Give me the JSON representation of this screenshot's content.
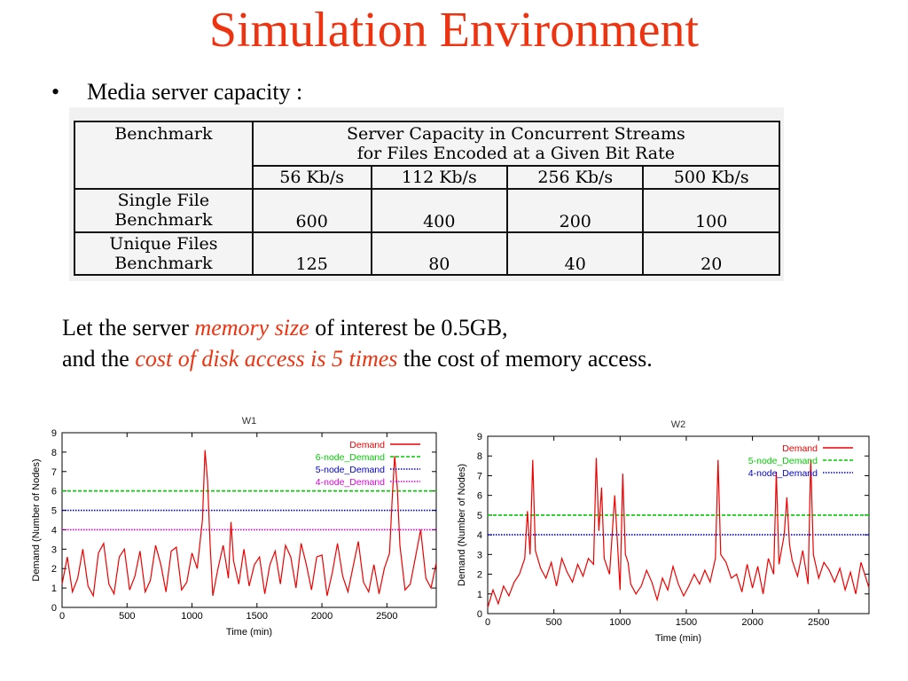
{
  "slide": {
    "title": "Simulation Environment",
    "bullet": "Media server capacity :",
    "para1_a": "Let the server ",
    "para1_b": "memory size",
    "para1_c": " of interest be 0.5GB,",
    "para2_a": "and the ",
    "para2_b": "cost of disk access is 5 times",
    "para2_c": " the cost of memory access.",
    "accent_color": "#ee3311"
  },
  "table": {
    "benchmark_header": "Benchmark",
    "capacity_header_line1": "Server Capacity in Concurrent Streams",
    "capacity_header_line2": "for Files Encoded at a Given Bit Rate",
    "rates": [
      "56 Kb/s",
      "112 Kb/s",
      "256 Kb/s",
      "500 Kb/s"
    ],
    "rows": [
      {
        "label1": "Single File",
        "label2": "Benchmark",
        "values": [
          "600",
          "400",
          "200",
          "100"
        ]
      },
      {
        "label1": "Unique Files",
        "label2": "Benchmark",
        "values": [
          "125",
          "80",
          "40",
          "20"
        ]
      }
    ]
  },
  "chart_data": [
    {
      "type": "line",
      "title": "W1",
      "xlabel": "Time (min)",
      "ylabel": "Demand (Number of Nodes)",
      "xlim": [
        0,
        2880
      ],
      "ylim": [
        0,
        9
      ],
      "xticks": [
        "0",
        "500",
        "1000",
        "1500",
        "2000",
        "2500"
      ],
      "yticks": [
        "0",
        "1",
        "2",
        "3",
        "4",
        "5",
        "6",
        "7",
        "8",
        "9"
      ],
      "legend_position": "top-right",
      "series": [
        {
          "name": "Demand",
          "color": "#ee0000",
          "style": "solid",
          "x": [
            0,
            40,
            80,
            120,
            160,
            200,
            240,
            280,
            320,
            360,
            400,
            440,
            480,
            520,
            560,
            600,
            640,
            680,
            720,
            760,
            800,
            840,
            880,
            920,
            960,
            1000,
            1040,
            1080,
            1100,
            1120,
            1140,
            1160,
            1200,
            1240,
            1280,
            1300,
            1320,
            1360,
            1400,
            1440,
            1480,
            1520,
            1560,
            1600,
            1640,
            1680,
            1720,
            1760,
            1800,
            1840,
            1880,
            1920,
            1960,
            2000,
            2040,
            2080,
            2120,
            2160,
            2200,
            2240,
            2280,
            2320,
            2360,
            2400,
            2440,
            2480,
            2520,
            2540,
            2560,
            2580,
            2600,
            2640,
            2680,
            2720,
            2760,
            2800,
            2840,
            2880
          ],
          "y": [
            1.2,
            2.6,
            0.8,
            1.5,
            3.0,
            1.1,
            0.6,
            2.8,
            3.3,
            1.2,
            0.7,
            2.6,
            3.0,
            0.9,
            1.6,
            2.9,
            0.8,
            1.4,
            3.2,
            2.2,
            0.8,
            2.9,
            3.1,
            0.9,
            1.3,
            2.8,
            2.0,
            4.5,
            8.1,
            6.5,
            3.2,
            0.6,
            2.0,
            3.2,
            1.5,
            4.4,
            2.4,
            1.2,
            3.0,
            1.1,
            2.2,
            2.6,
            0.7,
            2.2,
            2.9,
            1.2,
            3.2,
            2.6,
            1.0,
            3.3,
            2.2,
            0.9,
            2.6,
            2.7,
            0.6,
            1.8,
            3.3,
            1.6,
            0.8,
            2.1,
            3.4,
            1.3,
            0.8,
            2.2,
            0.7,
            2.0,
            2.8,
            5.5,
            7.8,
            6.2,
            3.2,
            0.9,
            1.2,
            2.6,
            4.0,
            1.5,
            1.0,
            2.3
          ]
        },
        {
          "name": "6-node_Demand",
          "color": "#00cc00",
          "style": "dashed",
          "x": [
            0,
            2880
          ],
          "y": [
            6,
            6
          ]
        },
        {
          "name": "5-node_Demand",
          "color": "#0000cc",
          "style": "dotted",
          "x": [
            0,
            2880
          ],
          "y": [
            5,
            5
          ]
        },
        {
          "name": "4-node_Demand",
          "color": "#dd00dd",
          "style": "dotted",
          "x": [
            0,
            2880
          ],
          "y": [
            4,
            4
          ]
        }
      ]
    },
    {
      "type": "line",
      "title": "W2",
      "xlabel": "Time (min)",
      "ylabel": "Demand (Number of Nodes)",
      "xlim": [
        0,
        2880
      ],
      "ylim": [
        0,
        9
      ],
      "xticks": [
        "0",
        "500",
        "1000",
        "1500",
        "2000",
        "2500"
      ],
      "yticks": [
        "0",
        "1",
        "2",
        "3",
        "4",
        "5",
        "6",
        "7",
        "8",
        "9"
      ],
      "legend_position": "top-right",
      "series": [
        {
          "name": "Demand",
          "color": "#ee0000",
          "style": "solid",
          "x": [
            0,
            40,
            80,
            120,
            160,
            200,
            240,
            280,
            300,
            320,
            340,
            360,
            400,
            440,
            480,
            520,
            560,
            600,
            640,
            680,
            720,
            760,
            800,
            820,
            840,
            860,
            880,
            920,
            960,
            1000,
            1020,
            1040,
            1060,
            1080,
            1120,
            1160,
            1200,
            1240,
            1280,
            1320,
            1360,
            1400,
            1440,
            1480,
            1520,
            1560,
            1600,
            1640,
            1680,
            1720,
            1740,
            1760,
            1800,
            1840,
            1880,
            1920,
            1960,
            2000,
            2040,
            2080,
            2120,
            2160,
            2180,
            2200,
            2240,
            2260,
            2280,
            2300,
            2340,
            2380,
            2420,
            2440,
            2460,
            2500,
            2540,
            2580,
            2620,
            2660,
            2700,
            2740,
            2780,
            2820,
            2880
          ],
          "y": [
            0.3,
            1.2,
            0.5,
            1.4,
            0.9,
            1.6,
            2.0,
            2.8,
            5.2,
            3.0,
            7.8,
            3.2,
            2.3,
            1.8,
            2.6,
            1.4,
            2.8,
            2.1,
            1.6,
            2.5,
            1.9,
            2.8,
            2.5,
            7.9,
            4.2,
            6.4,
            2.8,
            2.0,
            6.0,
            1.2,
            7.1,
            3.0,
            2.6,
            1.5,
            1.0,
            1.4,
            2.2,
            1.6,
            0.7,
            1.8,
            1.2,
            2.4,
            1.5,
            0.9,
            1.4,
            2.0,
            1.5,
            2.2,
            1.6,
            2.8,
            7.8,
            3.0,
            2.6,
            1.8,
            2.0,
            1.1,
            2.5,
            1.3,
            2.4,
            1.0,
            2.8,
            2.0,
            7.2,
            2.5,
            4.0,
            5.9,
            3.5,
            2.7,
            1.9,
            3.2,
            1.5,
            7.8,
            3.0,
            1.8,
            2.6,
            2.2,
            1.6,
            2.3,
            1.2,
            2.1,
            1.0,
            2.6,
            1.3
          ]
        },
        {
          "name": "5-node_Demand",
          "color": "#00cc00",
          "style": "dashed",
          "x": [
            0,
            2880
          ],
          "y": [
            5,
            5
          ]
        },
        {
          "name": "4-node_Demand",
          "color": "#0000cc",
          "style": "dotted",
          "x": [
            0,
            2880
          ],
          "y": [
            4,
            4
          ]
        }
      ]
    }
  ]
}
